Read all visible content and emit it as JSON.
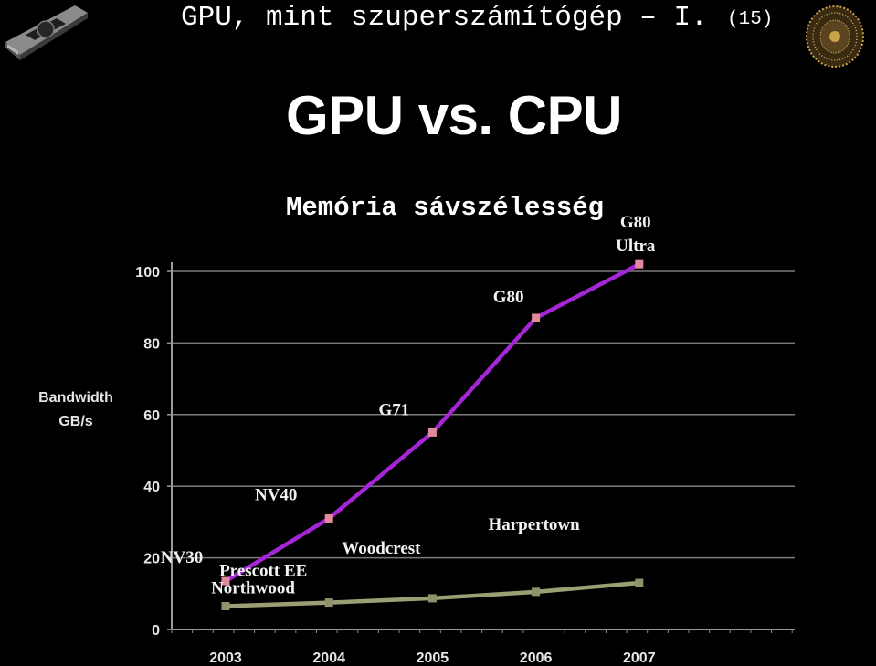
{
  "header": {
    "title": "GPU, mint szuperszámítógép – I.",
    "page_number": "(15)",
    "logo_icon": "gpu-card-icon",
    "seal_icon": "university-seal-icon"
  },
  "slide": {
    "title": "GPU vs. CPU"
  },
  "chart_data": {
    "type": "line",
    "title": "Memória sávszélesség",
    "xlabel": "",
    "ylabel": [
      "Bandwidth",
      "GB/s"
    ],
    "x": [
      "2003",
      "2004",
      "2005",
      "2006",
      "2007"
    ],
    "ylim": [
      0,
      100
    ],
    "yticks": [
      "0",
      "20",
      "40",
      "60",
      "80",
      "100"
    ],
    "grid": true,
    "series": [
      {
        "values": [
          13.5,
          31,
          55,
          87,
          102
        ],
        "color": "#a526d6",
        "marker_color": "#e08a9c",
        "point_labels": [
          "NV30",
          "NV40",
          "G71",
          "G80",
          "G80 Ultra"
        ]
      },
      {
        "values": [
          6.5,
          7.5,
          8.7,
          10.5,
          13
        ],
        "color": "#9c9f73",
        "marker_color": "#8f926a",
        "point_labels": [
          "Northwood",
          "Prescott EE",
          "Woodcrest",
          "Harpertown"
        ]
      }
    ]
  }
}
